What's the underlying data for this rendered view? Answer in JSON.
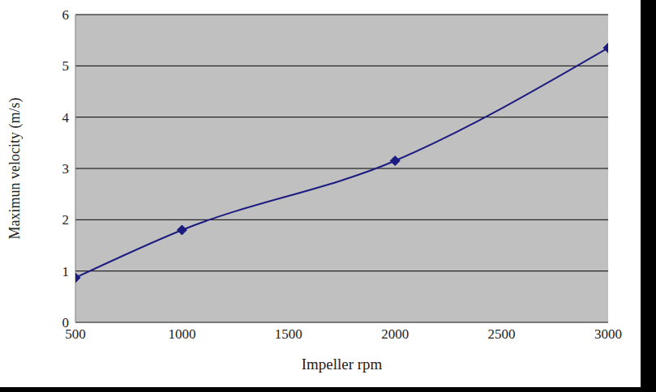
{
  "chart_data": {
    "type": "line",
    "x_label": "Impeller rpm",
    "y_label": "Maximun velocity (m/s)",
    "x": [
      500,
      1000,
      2000,
      3000
    ],
    "values": [
      0.87,
      1.8,
      3.15,
      5.35
    ],
    "color": "#1c1c80",
    "marker": "diamond",
    "xlim": [
      500,
      3000
    ],
    "xticks": [
      500,
      1000,
      1500,
      2000,
      2500,
      3000
    ],
    "ylim": [
      0,
      6
    ],
    "yticks": [
      0,
      1,
      2,
      3,
      4,
      5,
      6
    ],
    "grid": true
  }
}
